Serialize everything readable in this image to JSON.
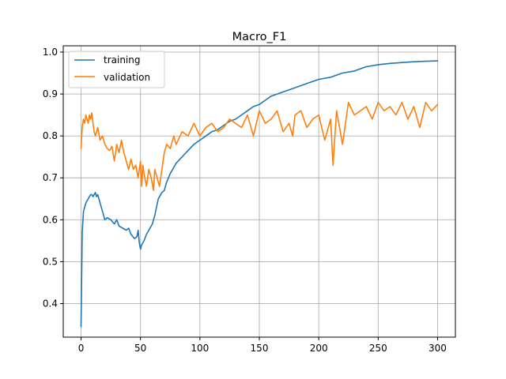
{
  "chart_data": {
    "type": "line",
    "title": "Macro_F1",
    "xlabel": "",
    "ylabel": "",
    "xlim": [
      -15,
      315
    ],
    "ylim": [
      0.32,
      1.015
    ],
    "xticks": [
      0,
      50,
      100,
      150,
      200,
      250,
      300
    ],
    "yticks": [
      0.4,
      0.5,
      0.6,
      0.7,
      0.8,
      0.9,
      1.0
    ],
    "xtick_labels": [
      "0",
      "50",
      "100",
      "150",
      "200",
      "250",
      "300"
    ],
    "ytick_labels": [
      "0.4",
      "0.5",
      "0.6",
      "0.7",
      "0.8",
      "0.9",
      "1.0"
    ],
    "grid": true,
    "legend_position": "upper-left",
    "series": [
      {
        "name": "training",
        "color": "#1f77b4",
        "x": [
          0,
          1,
          2,
          3,
          4,
          5,
          6,
          7,
          8,
          9,
          10,
          11,
          12,
          13,
          14,
          15,
          18,
          20,
          22,
          25,
          28,
          30,
          32,
          35,
          38,
          40,
          42,
          45,
          47,
          48,
          49,
          50,
          51,
          52,
          53,
          55,
          57,
          60,
          62,
          65,
          68,
          70,
          72,
          75,
          78,
          80,
          85,
          90,
          95,
          100,
          105,
          110,
          115,
          120,
          125,
          130,
          135,
          140,
          145,
          150,
          155,
          160,
          165,
          170,
          175,
          180,
          190,
          200,
          210,
          220,
          230,
          240,
          250,
          260,
          270,
          280,
          290,
          300
        ],
        "values": [
          0.345,
          0.57,
          0.62,
          0.63,
          0.64,
          0.645,
          0.65,
          0.655,
          0.66,
          0.66,
          0.655,
          0.66,
          0.665,
          0.655,
          0.66,
          0.65,
          0.62,
          0.6,
          0.605,
          0.6,
          0.59,
          0.6,
          0.585,
          0.58,
          0.575,
          0.58,
          0.565,
          0.555,
          0.56,
          0.575,
          0.545,
          0.53,
          0.54,
          0.545,
          0.55,
          0.565,
          0.575,
          0.59,
          0.61,
          0.65,
          0.665,
          0.67,
          0.69,
          0.71,
          0.725,
          0.735,
          0.75,
          0.765,
          0.78,
          0.79,
          0.8,
          0.81,
          0.815,
          0.825,
          0.835,
          0.84,
          0.85,
          0.86,
          0.87,
          0.875,
          0.885,
          0.895,
          0.9,
          0.905,
          0.91,
          0.915,
          0.925,
          0.935,
          0.94,
          0.95,
          0.955,
          0.965,
          0.97,
          0.973,
          0.975,
          0.977,
          0.978,
          0.979
        ]
      },
      {
        "name": "validation",
        "color": "#ff7f0e",
        "x": [
          0,
          1,
          2,
          3,
          4,
          5,
          6,
          7,
          8,
          9,
          10,
          11,
          12,
          14,
          16,
          18,
          20,
          22,
          24,
          26,
          28,
          30,
          32,
          34,
          36,
          38,
          40,
          42,
          44,
          46,
          48,
          50,
          51,
          52,
          53,
          55,
          57,
          59,
          61,
          62,
          64,
          66,
          68,
          70,
          72,
          75,
          78,
          80,
          85,
          90,
          95,
          100,
          105,
          110,
          115,
          120,
          125,
          130,
          135,
          140,
          145,
          150,
          155,
          160,
          165,
          170,
          175,
          178,
          180,
          185,
          190,
          195,
          200,
          205,
          210,
          212,
          215,
          220,
          225,
          230,
          235,
          240,
          245,
          250,
          255,
          260,
          265,
          270,
          275,
          280,
          285,
          290,
          295,
          300
        ],
        "values": [
          0.77,
          0.82,
          0.84,
          0.83,
          0.85,
          0.84,
          0.83,
          0.85,
          0.84,
          0.855,
          0.83,
          0.81,
          0.8,
          0.82,
          0.79,
          0.8,
          0.78,
          0.77,
          0.765,
          0.775,
          0.74,
          0.78,
          0.76,
          0.79,
          0.76,
          0.74,
          0.72,
          0.745,
          0.72,
          0.73,
          0.7,
          0.74,
          0.68,
          0.73,
          0.71,
          0.68,
          0.72,
          0.7,
          0.67,
          0.72,
          0.7,
          0.68,
          0.72,
          0.76,
          0.78,
          0.77,
          0.8,
          0.78,
          0.81,
          0.8,
          0.83,
          0.8,
          0.82,
          0.83,
          0.81,
          0.82,
          0.84,
          0.83,
          0.82,
          0.85,
          0.8,
          0.86,
          0.83,
          0.84,
          0.86,
          0.81,
          0.83,
          0.8,
          0.85,
          0.86,
          0.82,
          0.84,
          0.85,
          0.79,
          0.84,
          0.73,
          0.86,
          0.78,
          0.88,
          0.85,
          0.86,
          0.87,
          0.84,
          0.88,
          0.86,
          0.87,
          0.85,
          0.88,
          0.84,
          0.87,
          0.82,
          0.88,
          0.86,
          0.875
        ]
      }
    ]
  }
}
